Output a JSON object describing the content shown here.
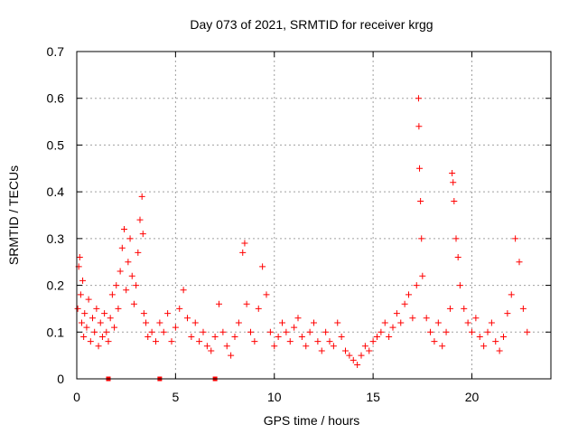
{
  "chart_data": {
    "type": "scatter",
    "title": "Day 073 of 2021, SRMTID for receiver krgg",
    "xlabel": "GPS time / hours",
    "ylabel": "SRMTID / TECUs",
    "xlim": [
      0,
      24
    ],
    "ylim": [
      0,
      0.7
    ],
    "xticks": [
      0,
      5,
      10,
      15,
      20
    ],
    "yticks": [
      0,
      0.1,
      0.2,
      0.3,
      0.4,
      0.5,
      0.6,
      0.7
    ],
    "xtick_labels": [
      "0",
      "5",
      "10",
      "15",
      "20"
    ],
    "ytick_labels": [
      "0",
      "0.1",
      "0.2",
      "0.3",
      "0.4",
      "0.5",
      "0.6",
      "0.7"
    ],
    "grid": true,
    "marker": "plus",
    "color": "#ff0000",
    "series": [
      {
        "name": "SRMTID",
        "points": [
          [
            0.05,
            0.15
          ],
          [
            0.1,
            0.24
          ],
          [
            0.15,
            0.26
          ],
          [
            0.2,
            0.18
          ],
          [
            0.25,
            0.12
          ],
          [
            0.3,
            0.21
          ],
          [
            0.35,
            0.09
          ],
          [
            0.4,
            0.14
          ],
          [
            0.5,
            0.11
          ],
          [
            0.6,
            0.17
          ],
          [
            0.7,
            0.08
          ],
          [
            0.8,
            0.13
          ],
          [
            0.9,
            0.1
          ],
          [
            1.0,
            0.15
          ],
          [
            1.1,
            0.07
          ],
          [
            1.2,
            0.12
          ],
          [
            1.3,
            0.09
          ],
          [
            1.4,
            0.14
          ],
          [
            1.5,
            0.1
          ],
          [
            1.6,
            0.08
          ],
          [
            1.7,
            0.13
          ],
          [
            1.8,
            0.18
          ],
          [
            1.9,
            0.11
          ],
          [
            2.0,
            0.2
          ],
          [
            2.1,
            0.15
          ],
          [
            2.2,
            0.23
          ],
          [
            2.3,
            0.28
          ],
          [
            2.4,
            0.32
          ],
          [
            2.5,
            0.19
          ],
          [
            2.6,
            0.25
          ],
          [
            2.7,
            0.3
          ],
          [
            2.8,
            0.22
          ],
          [
            2.9,
            0.16
          ],
          [
            3.0,
            0.2
          ],
          [
            3.1,
            0.27
          ],
          [
            3.2,
            0.34
          ],
          [
            3.3,
            0.39
          ],
          [
            3.35,
            0.31
          ],
          [
            3.4,
            0.14
          ],
          [
            3.5,
            0.12
          ],
          [
            3.6,
            0.09
          ],
          [
            3.8,
            0.1
          ],
          [
            4.0,
            0.08
          ],
          [
            4.2,
            0.12
          ],
          [
            4.4,
            0.1
          ],
          [
            4.6,
            0.14
          ],
          [
            4.8,
            0.08
          ],
          [
            5.0,
            0.11
          ],
          [
            5.2,
            0.15
          ],
          [
            5.4,
            0.19
          ],
          [
            5.6,
            0.13
          ],
          [
            5.8,
            0.09
          ],
          [
            6.0,
            0.12
          ],
          [
            6.2,
            0.08
          ],
          [
            6.4,
            0.1
          ],
          [
            6.6,
            0.07
          ],
          [
            6.8,
            0.06
          ],
          [
            7.0,
            0.09
          ],
          [
            7.2,
            0.16
          ],
          [
            7.4,
            0.1
          ],
          [
            7.6,
            0.07
          ],
          [
            7.8,
            0.05
          ],
          [
            8.0,
            0.09
          ],
          [
            8.2,
            0.12
          ],
          [
            8.4,
            0.27
          ],
          [
            8.5,
            0.29
          ],
          [
            8.6,
            0.16
          ],
          [
            8.8,
            0.1
          ],
          [
            9.0,
            0.08
          ],
          [
            9.2,
            0.15
          ],
          [
            9.4,
            0.24
          ],
          [
            9.6,
            0.18
          ],
          [
            9.8,
            0.1
          ],
          [
            10.0,
            0.07
          ],
          [
            10.2,
            0.09
          ],
          [
            10.4,
            0.12
          ],
          [
            10.6,
            0.1
          ],
          [
            10.8,
            0.08
          ],
          [
            11.0,
            0.11
          ],
          [
            11.2,
            0.13
          ],
          [
            11.4,
            0.09
          ],
          [
            11.6,
            0.07
          ],
          [
            11.8,
            0.1
          ],
          [
            12.0,
            0.12
          ],
          [
            12.2,
            0.08
          ],
          [
            12.4,
            0.06
          ],
          [
            12.6,
            0.1
          ],
          [
            12.8,
            0.08
          ],
          [
            13.0,
            0.07
          ],
          [
            13.2,
            0.12
          ],
          [
            13.4,
            0.09
          ],
          [
            13.6,
            0.06
          ],
          [
            13.8,
            0.05
          ],
          [
            14.0,
            0.04
          ],
          [
            14.2,
            0.03
          ],
          [
            14.4,
            0.05
          ],
          [
            14.6,
            0.07
          ],
          [
            14.8,
            0.06
          ],
          [
            15.0,
            0.08
          ],
          [
            15.2,
            0.09
          ],
          [
            15.4,
            0.1
          ],
          [
            15.6,
            0.12
          ],
          [
            15.8,
            0.09
          ],
          [
            16.0,
            0.11
          ],
          [
            16.2,
            0.14
          ],
          [
            16.4,
            0.12
          ],
          [
            16.6,
            0.16
          ],
          [
            16.8,
            0.18
          ],
          [
            17.0,
            0.13
          ],
          [
            17.2,
            0.2
          ],
          [
            17.3,
            0.6
          ],
          [
            17.32,
            0.54
          ],
          [
            17.35,
            0.45
          ],
          [
            17.4,
            0.38
          ],
          [
            17.45,
            0.3
          ],
          [
            17.5,
            0.22
          ],
          [
            17.7,
            0.13
          ],
          [
            17.9,
            0.1
          ],
          [
            18.1,
            0.08
          ],
          [
            18.3,
            0.12
          ],
          [
            18.5,
            0.07
          ],
          [
            18.7,
            0.1
          ],
          [
            18.9,
            0.15
          ],
          [
            19.0,
            0.44
          ],
          [
            19.05,
            0.42
          ],
          [
            19.1,
            0.38
          ],
          [
            19.2,
            0.3
          ],
          [
            19.3,
            0.26
          ],
          [
            19.4,
            0.2
          ],
          [
            19.6,
            0.15
          ],
          [
            19.8,
            0.12
          ],
          [
            20.0,
            0.1
          ],
          [
            20.2,
            0.13
          ],
          [
            20.4,
            0.09
          ],
          [
            20.6,
            0.07
          ],
          [
            20.8,
            0.1
          ],
          [
            21.0,
            0.12
          ],
          [
            21.2,
            0.08
          ],
          [
            21.4,
            0.06
          ],
          [
            21.6,
            0.09
          ],
          [
            21.8,
            0.14
          ],
          [
            22.0,
            0.18
          ],
          [
            22.2,
            0.3
          ],
          [
            22.4,
            0.25
          ],
          [
            22.6,
            0.15
          ],
          [
            22.8,
            0.1
          ]
        ],
        "zero_points": [
          1.6,
          4.2,
          7.0
        ]
      }
    ]
  }
}
